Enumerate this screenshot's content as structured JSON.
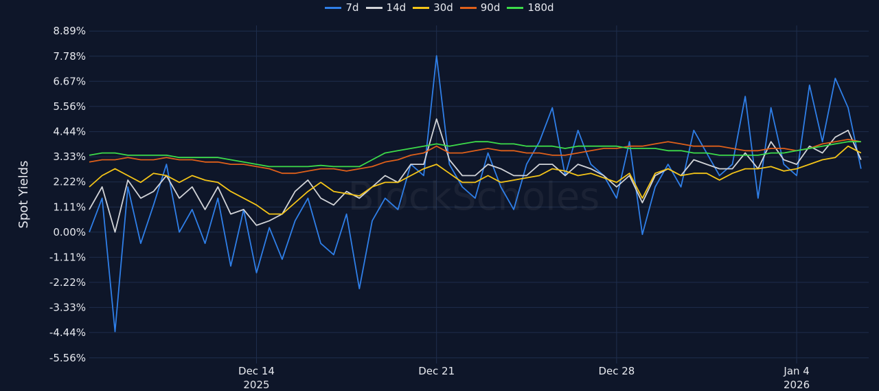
{
  "chart_data": {
    "type": "line",
    "title": "",
    "xlabel": "",
    "ylabel": "Spot Yields",
    "watermark": "BlockScholes",
    "x_start": "2025-12-07 12:00",
    "x_step_hours": 12,
    "x_unit": "days since 2025-12-07 12:00",
    "xlim": [
      0,
      30.3
    ],
    "x_ticks": [
      {
        "value": 6.5,
        "label": "Dec 14",
        "sub": "2025"
      },
      {
        "value": 13.5,
        "label": "Dec 21",
        "sub": ""
      },
      {
        "value": 20.5,
        "label": "Dec 28",
        "sub": ""
      },
      {
        "value": 27.5,
        "label": "Jan 4",
        "sub": "2026"
      }
    ],
    "ylim": [
      -5.81,
      9.14
    ],
    "y_ticks": [
      {
        "value": 8.89,
        "label": "8.89%"
      },
      {
        "value": 7.78,
        "label": "7.78%"
      },
      {
        "value": 6.67,
        "label": "6.67%"
      },
      {
        "value": 5.56,
        "label": "5.56%"
      },
      {
        "value": 4.44,
        "label": "4.44%"
      },
      {
        "value": 3.33,
        "label": "3.33%"
      },
      {
        "value": 2.22,
        "label": "2.22%"
      },
      {
        "value": 1.11,
        "label": "1.11%"
      },
      {
        "value": 0.0,
        "label": "0.00%"
      },
      {
        "value": -1.11,
        "label": "-1.11%"
      },
      {
        "value": -2.22,
        "label": "-2.22%"
      },
      {
        "value": -3.33,
        "label": "-3.33%"
      },
      {
        "value": -4.44,
        "label": "-4.44%"
      },
      {
        "value": -5.56,
        "label": "-5.56%"
      }
    ],
    "grid": true,
    "legend_position": "top-center",
    "series": [
      {
        "name": "7d",
        "color": "#2f7fe8",
        "values": [
          0.0,
          1.5,
          -4.4,
          2.0,
          -0.5,
          1.2,
          3.0,
          0.0,
          1.0,
          -0.5,
          1.5,
          -1.5,
          1.0,
          -1.8,
          0.2,
          -1.2,
          0.5,
          1.5,
          -0.5,
          -1.0,
          0.8,
          -2.5,
          0.5,
          1.5,
          1.0,
          3.0,
          2.5,
          7.8,
          3.0,
          2.0,
          1.5,
          3.5,
          2.0,
          1.0,
          3.0,
          4.0,
          5.5,
          2.5,
          4.5,
          3.0,
          2.5,
          1.5,
          4.0,
          -0.1,
          2.0,
          3.0,
          2.0,
          4.5,
          3.5,
          2.5,
          3.0,
          6.0,
          1.5,
          5.5,
          3.0,
          2.5,
          6.5,
          4.0,
          6.8,
          5.5,
          2.8
        ]
      },
      {
        "name": "14d",
        "color": "#d2d4d8",
        "values": [
          1.0,
          2.0,
          0.0,
          2.3,
          1.5,
          1.8,
          2.5,
          1.5,
          2.0,
          1.0,
          2.0,
          0.8,
          1.0,
          0.3,
          0.5,
          0.8,
          1.8,
          2.3,
          1.5,
          1.2,
          1.8,
          1.5,
          2.0,
          2.5,
          2.2,
          3.0,
          3.0,
          5.0,
          3.2,
          2.5,
          2.5,
          3.0,
          2.8,
          2.5,
          2.5,
          3.0,
          3.0,
          2.5,
          3.0,
          2.8,
          2.5,
          2.0,
          2.5,
          1.3,
          2.5,
          2.8,
          2.5,
          3.2,
          3.0,
          2.8,
          2.8,
          3.5,
          2.8,
          4.0,
          3.2,
          3.0,
          3.8,
          3.5,
          4.2,
          4.5,
          3.2
        ]
      },
      {
        "name": "30d",
        "color": "#f5c518",
        "values": [
          2.0,
          2.5,
          2.8,
          2.5,
          2.2,
          2.6,
          2.5,
          2.2,
          2.5,
          2.3,
          2.2,
          1.8,
          1.5,
          1.2,
          0.8,
          0.8,
          1.3,
          1.8,
          2.2,
          1.8,
          1.7,
          1.6,
          2.0,
          2.2,
          2.2,
          2.5,
          2.8,
          3.0,
          2.6,
          2.2,
          2.2,
          2.5,
          2.2,
          2.3,
          2.4,
          2.5,
          2.8,
          2.7,
          2.5,
          2.6,
          2.4,
          2.2,
          2.6,
          1.5,
          2.6,
          2.8,
          2.5,
          2.6,
          2.6,
          2.3,
          2.6,
          2.8,
          2.8,
          2.9,
          2.7,
          2.8,
          3.0,
          3.2,
          3.3,
          3.8,
          3.5
        ]
      },
      {
        "name": "90d",
        "color": "#e0601a",
        "values": [
          3.1,
          3.2,
          3.2,
          3.3,
          3.2,
          3.2,
          3.3,
          3.2,
          3.2,
          3.1,
          3.1,
          3.0,
          3.0,
          2.9,
          2.8,
          2.6,
          2.6,
          2.7,
          2.8,
          2.8,
          2.7,
          2.8,
          2.9,
          3.1,
          3.2,
          3.4,
          3.5,
          3.8,
          3.5,
          3.5,
          3.6,
          3.7,
          3.6,
          3.6,
          3.5,
          3.5,
          3.4,
          3.4,
          3.5,
          3.6,
          3.7,
          3.7,
          3.8,
          3.8,
          3.9,
          4.0,
          3.9,
          3.8,
          3.8,
          3.8,
          3.7,
          3.6,
          3.6,
          3.7,
          3.7,
          3.6,
          3.7,
          3.9,
          4.0,
          4.1,
          4.0
        ]
      },
      {
        "name": "180d",
        "color": "#3ddc4a",
        "values": [
          3.4,
          3.5,
          3.5,
          3.4,
          3.4,
          3.4,
          3.4,
          3.3,
          3.3,
          3.3,
          3.3,
          3.2,
          3.1,
          3.0,
          2.9,
          2.9,
          2.9,
          2.9,
          2.95,
          2.9,
          2.9,
          2.9,
          3.2,
          3.5,
          3.6,
          3.7,
          3.8,
          3.9,
          3.8,
          3.9,
          4.0,
          4.0,
          3.9,
          3.9,
          3.8,
          3.8,
          3.8,
          3.7,
          3.8,
          3.8,
          3.8,
          3.8,
          3.7,
          3.7,
          3.7,
          3.6,
          3.6,
          3.5,
          3.5,
          3.4,
          3.4,
          3.4,
          3.4,
          3.5,
          3.5,
          3.6,
          3.7,
          3.8,
          3.9,
          4.0,
          4.0
        ]
      }
    ]
  }
}
